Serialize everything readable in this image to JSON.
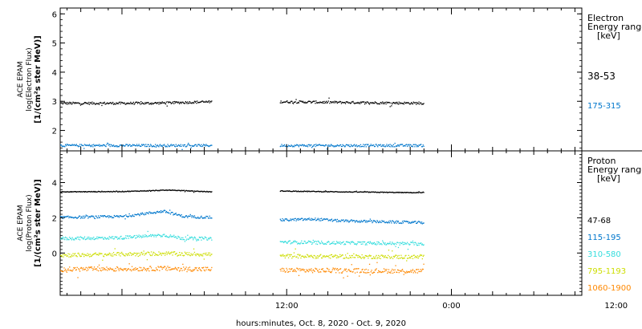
{
  "x_axis_title": "hours:minutes, Oct.  8, 2020 - Oct.  9, 2020",
  "x_ticks": [
    "12:00",
    "0:00",
    "12:00"
  ],
  "chart_data": [
    {
      "type": "scatter",
      "panel": "electron",
      "ylabel_lines": [
        "ACE EPAM",
        "log(Electron Flux)",
        "[1/(cm²s ster MeV)]"
      ],
      "legend_title_lines": [
        "Electron",
        "Energy range",
        "[keV]"
      ],
      "x_range_hours": [
        -4.5,
        33.5
      ],
      "ylim": [
        1.3,
        6.2
      ],
      "yticks": [
        2,
        3,
        4,
        5,
        6
      ],
      "data_gaps_hours": [
        [
          6.5,
          11.5
        ]
      ],
      "data_end_hours": 22.0,
      "series": [
        {
          "name": "38-53",
          "color": "#000000",
          "values_by_hour": [
            [
              -4.5,
              2.95
            ],
            [
              2.0,
              2.95
            ],
            [
              6.5,
              3.0
            ],
            [
              11.5,
              3.0
            ],
            [
              22.0,
              2.95
            ]
          ]
        },
        {
          "name": "175-315",
          "color": "#0077cc",
          "values_by_hour": [
            [
              -4.5,
              1.5
            ],
            [
              6.5,
              1.5
            ],
            [
              11.5,
              1.5
            ],
            [
              22.0,
              1.5
            ]
          ]
        }
      ]
    },
    {
      "type": "scatter",
      "panel": "proton",
      "ylabel_lines": [
        "ACE EPAM",
        "log(Proton Flux)",
        "[1/(cm²s ster MeV)]"
      ],
      "legend_title_lines": [
        "Proton",
        "Energy range",
        "[keV]"
      ],
      "x_range_hours": [
        -4.5,
        33.5
      ],
      "ylim": [
        -2.4,
        5.8
      ],
      "yticks": [
        0,
        2,
        4
      ],
      "data_gaps_hours": [
        [
          6.5,
          11.5
        ]
      ],
      "data_end_hours": 22.0,
      "series": [
        {
          "name": "47-68",
          "color": "#000000",
          "values_by_hour": [
            [
              -4.5,
              3.5
            ],
            [
              0,
              3.52
            ],
            [
              3.5,
              3.6
            ],
            [
              6.5,
              3.5
            ],
            [
              11.5,
              3.55
            ],
            [
              16,
              3.5
            ],
            [
              22.0,
              3.45
            ]
          ]
        },
        {
          "name": "115-195",
          "color": "#0077cc",
          "values_by_hour": [
            [
              -4.5,
              2.05
            ],
            [
              0,
              2.1
            ],
            [
              3.0,
              2.4
            ],
            [
              4.5,
              2.1
            ],
            [
              6.5,
              2.05
            ],
            [
              11.5,
              1.9
            ],
            [
              14,
              1.95
            ],
            [
              16,
              1.85
            ],
            [
              22.0,
              1.75
            ]
          ]
        },
        {
          "name": "310-580",
          "color": "#33dddd",
          "values_by_hour": [
            [
              -4.5,
              0.85
            ],
            [
              0,
              0.9
            ],
            [
              3.0,
              1.05
            ],
            [
              4.5,
              0.85
            ],
            [
              6.5,
              0.85
            ],
            [
              11.5,
              0.65
            ],
            [
              16,
              0.6
            ],
            [
              22.0,
              0.55
            ]
          ]
        },
        {
          "name": "795-1193",
          "color": "#ccdd00",
          "values_by_hour": [
            [
              -4.5,
              -0.1
            ],
            [
              3.0,
              0.0
            ],
            [
              6.5,
              -0.05
            ],
            [
              11.5,
              -0.15
            ],
            [
              22.0,
              -0.2
            ]
          ]
        },
        {
          "name": "1060-1900",
          "color": "#ff8800",
          "values_by_hour": [
            [
              -4.5,
              -0.9
            ],
            [
              3.0,
              -0.85
            ],
            [
              6.5,
              -0.9
            ],
            [
              11.5,
              -0.95
            ],
            [
              22.0,
              -1.0
            ]
          ]
        }
      ]
    }
  ]
}
